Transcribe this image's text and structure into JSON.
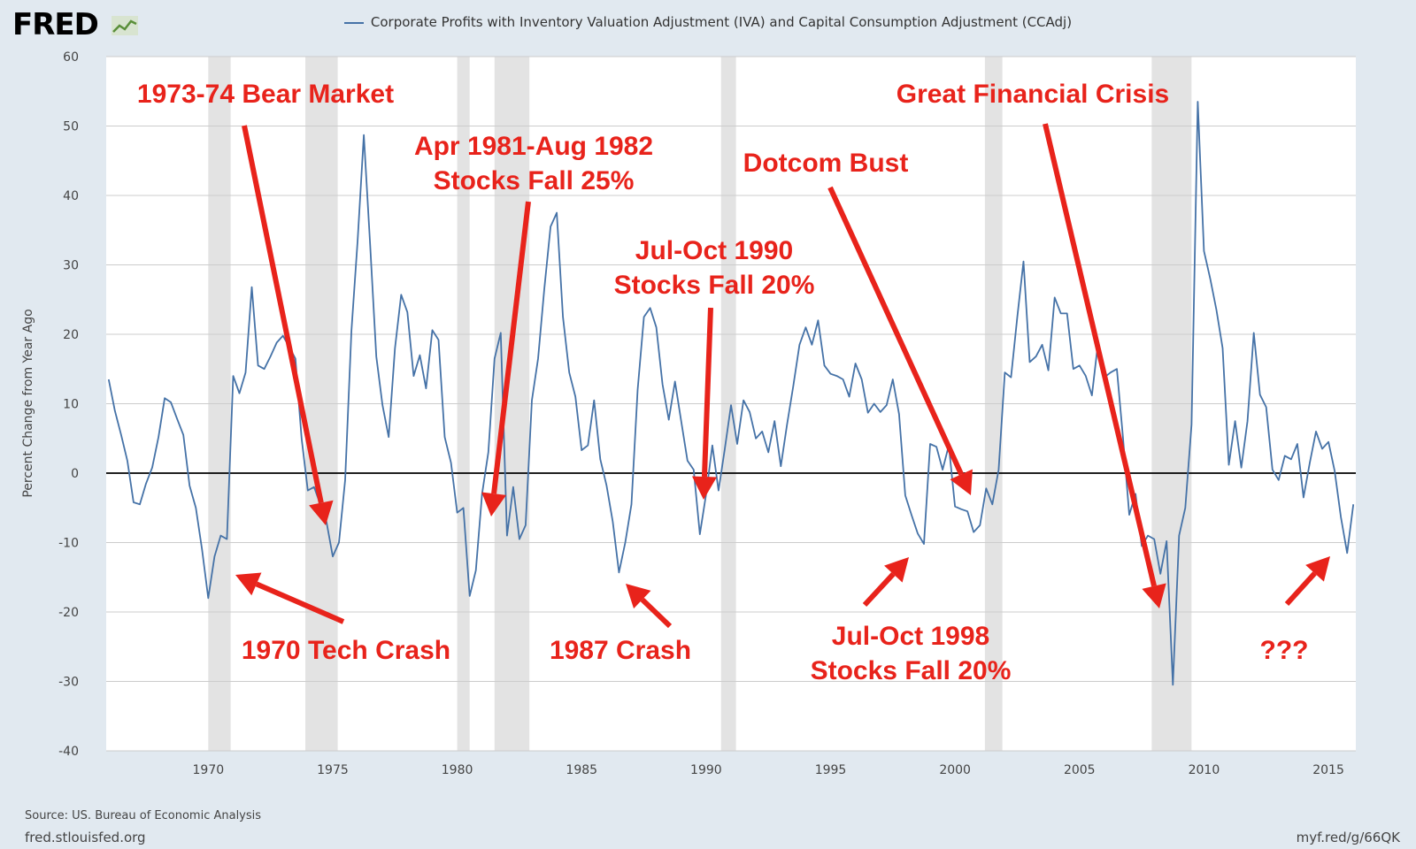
{
  "header": {
    "logo_text": "FRED",
    "legend_label": "Corporate Profits with Inventory Valuation Adjustment (IVA) and Capital Consumption Adjustment (CCAdj)"
  },
  "footer": {
    "source": "Source: US. Bureau of Economic Analysis",
    "site": "fred.stlouisfed.org",
    "shortlink": "myf.red/g/66QK"
  },
  "colors": {
    "line": "#4572a7",
    "annotation": "#e8231b",
    "recession": "#e3e3e3",
    "grid": "#cccccc"
  },
  "chart_data": {
    "type": "line",
    "title": "",
    "xlabel": "",
    "ylabel": "Percent Change from Year Ago",
    "xlim": [
      1965.9,
      2016.1
    ],
    "ylim": [
      -40,
      60
    ],
    "yticks": [
      60,
      50,
      40,
      30,
      20,
      10,
      0,
      -10,
      -20,
      -30,
      -40
    ],
    "xticks": [
      1970,
      1975,
      1980,
      1985,
      1990,
      1995,
      2000,
      2005,
      2010,
      2015
    ],
    "grid": true,
    "recessions": [
      [
        1970.0,
        1970.9
      ],
      [
        1973.9,
        1975.2
      ],
      [
        1980.0,
        1980.5
      ],
      [
        1981.5,
        1982.9
      ],
      [
        1990.6,
        1991.2
      ],
      [
        2001.2,
        2001.9
      ],
      [
        2007.9,
        2009.5
      ]
    ],
    "series": [
      {
        "name": "Corporate Profits with Inventory Valuation Adjustment (IVA) and Capital Consumption Adjustment (CCAdj)",
        "x": [
          1966.0,
          1966.25,
          1966.5,
          1966.75,
          1967.0,
          1967.25,
          1967.5,
          1967.75,
          1968.0,
          1968.25,
          1968.5,
          1968.75,
          1969.0,
          1969.25,
          1969.5,
          1969.75,
          1970.0,
          1970.25,
          1970.5,
          1970.75,
          1971.0,
          1971.25,
          1971.5,
          1971.75,
          1972.0,
          1972.25,
          1972.5,
          1972.75,
          1973.0,
          1973.25,
          1973.5,
          1973.75,
          1974.0,
          1974.25,
          1974.5,
          1974.75,
          1975.0,
          1975.25,
          1975.5,
          1975.75,
          1976.0,
          1976.25,
          1976.5,
          1976.75,
          1977.0,
          1977.25,
          1977.5,
          1977.75,
          1978.0,
          1978.25,
          1978.5,
          1978.75,
          1979.0,
          1979.25,
          1979.5,
          1979.75,
          1980.0,
          1980.25,
          1980.5,
          1980.75,
          1981.0,
          1981.25,
          1981.5,
          1981.75,
          1982.0,
          1982.25,
          1982.5,
          1982.75,
          1983.0,
          1983.25,
          1983.5,
          1983.75,
          1984.0,
          1984.25,
          1984.5,
          1984.75,
          1985.0,
          1985.25,
          1985.5,
          1985.75,
          1986.0,
          1986.25,
          1986.5,
          1986.75,
          1987.0,
          1987.25,
          1987.5,
          1987.75,
          1988.0,
          1988.25,
          1988.5,
          1988.75,
          1989.0,
          1989.25,
          1989.5,
          1989.75,
          1990.0,
          1990.25,
          1990.5,
          1990.75,
          1991.0,
          1991.25,
          1991.5,
          1991.75,
          1992.0,
          1992.25,
          1992.5,
          1992.75,
          1993.0,
          1993.25,
          1993.5,
          1993.75,
          1994.0,
          1994.25,
          1994.5,
          1994.75,
          1995.0,
          1995.25,
          1995.5,
          1995.75,
          1996.0,
          1996.25,
          1996.5,
          1996.75,
          1997.0,
          1997.25,
          1997.5,
          1997.75,
          1998.0,
          1998.25,
          1998.5,
          1998.75,
          1999.0,
          1999.25,
          1999.5,
          1999.75,
          2000.0,
          2000.25,
          2000.5,
          2000.75,
          2001.0,
          2001.25,
          2001.5,
          2001.75,
          2002.0,
          2002.25,
          2002.5,
          2002.75,
          2003.0,
          2003.25,
          2003.5,
          2003.75,
          2004.0,
          2004.25,
          2004.5,
          2004.75,
          2005.0,
          2005.25,
          2005.5,
          2005.75,
          2006.0,
          2006.25,
          2006.5,
          2006.75,
          2007.0,
          2007.25,
          2007.5,
          2007.75,
          2008.0,
          2008.25,
          2008.5,
          2008.75,
          2009.0,
          2009.25,
          2009.5,
          2009.75,
          2010.0,
          2010.25,
          2010.5,
          2010.75,
          2011.0,
          2011.25,
          2011.5,
          2011.75,
          2012.0,
          2012.25,
          2012.5,
          2012.75,
          2013.0,
          2013.25,
          2013.5,
          2013.75,
          2014.0,
          2014.25,
          2014.5,
          2014.75,
          2015.0,
          2015.25,
          2015.5,
          2015.75,
          2016.0
        ],
        "values": [
          13.5,
          9.0,
          5.5,
          1.8,
          -4.2,
          -4.5,
          -1.5,
          0.8,
          5.2,
          10.8,
          10.2,
          7.8,
          5.5,
          -1.8,
          -5.0,
          -11.0,
          -18.0,
          -12.0,
          -9.0,
          -9.5,
          14.0,
          11.5,
          14.5,
          26.8,
          15.5,
          15.0,
          16.8,
          18.8,
          19.8,
          18.2,
          16.5,
          5.0,
          -2.5,
          -2.0,
          -4.5,
          -7.0,
          -12.0,
          -10.0,
          -1.0,
          20.5,
          33.5,
          48.7,
          33.0,
          16.8,
          9.8,
          5.2,
          18.0,
          25.7,
          23.2,
          14.0,
          17.0,
          12.2,
          20.6,
          19.2,
          5.2,
          1.5,
          -5.7,
          -5.0,
          -17.7,
          -14.0,
          -3.0,
          3.0,
          16.5,
          20.2,
          -9.0,
          -2.0,
          -9.5,
          -7.5,
          10.5,
          16.5,
          26.5,
          35.5,
          37.5,
          22.5,
          14.5,
          11.0,
          3.3,
          4.0,
          10.5,
          2.0,
          -1.8,
          -7.0,
          -14.3,
          -10.0,
          -4.5,
          12.0,
          22.5,
          23.8,
          21.0,
          12.8,
          7.7,
          13.2,
          7.5,
          1.8,
          0.5,
          -8.8,
          -3.0,
          4.0,
          -2.5,
          3.5,
          9.8,
          4.2,
          10.5,
          8.8,
          5.0,
          6.0,
          3.0,
          7.5,
          1.0,
          7.0,
          12.5,
          18.5,
          21.0,
          18.5,
          22.0,
          15.5,
          14.3,
          14.0,
          13.5,
          11.0,
          15.8,
          13.5,
          8.7,
          10.0,
          8.8,
          9.8,
          13.5,
          8.5,
          -3.2,
          -6.0,
          -8.7,
          -10.2,
          4.2,
          3.8,
          0.5,
          4.0,
          -4.8,
          -5.2,
          -5.5,
          -8.5,
          -7.5,
          -2.2,
          -4.5,
          0.5,
          14.5,
          13.8,
          22.5,
          30.5,
          16.0,
          16.8,
          18.5,
          14.8,
          25.3,
          23.0,
          23.0,
          15.0,
          15.5,
          14.0,
          11.2,
          19.0,
          13.8,
          14.5,
          15.0,
          5.0,
          -6.0,
          -3.0,
          -10.5,
          -9.0,
          -9.5,
          -14.5,
          -9.8,
          -30.5,
          -9.0,
          -5.0,
          7.0,
          53.5,
          32.0,
          28.0,
          23.5,
          18.0,
          1.2,
          7.5,
          0.8,
          7.5,
          20.2,
          11.3,
          9.5,
          0.5,
          -1.0,
          2.5,
          2.0,
          4.2,
          -3.5,
          1.5,
          6.0,
          3.5,
          4.5,
          0.3,
          -6.3,
          -11.5,
          -4.5
        ]
      }
    ],
    "annotations": [
      {
        "text": "1973-74 Bear Market",
        "arrow": "down"
      },
      {
        "text": "Apr 1981-Aug 1982",
        "arrow": "down"
      },
      {
        "text": "Stocks Fall 25%",
        "arrow": "none"
      },
      {
        "text": "Dotcom Bust",
        "arrow": "down"
      },
      {
        "text": "Jul-Oct 1990",
        "arrow": "down"
      },
      {
        "text": "Stocks Fall 20%",
        "arrow": "none"
      },
      {
        "text": "Great Financial Crisis",
        "arrow": "down"
      },
      {
        "text": "1970 Tech Crash",
        "arrow": "up"
      },
      {
        "text": "1987 Crash",
        "arrow": "up"
      },
      {
        "text": "Jul-Oct 1998",
        "arrow": "up"
      },
      {
        "text": "Stocks Fall 20%",
        "arrow": "none"
      },
      {
        "text": "???",
        "arrow": "up"
      }
    ]
  }
}
